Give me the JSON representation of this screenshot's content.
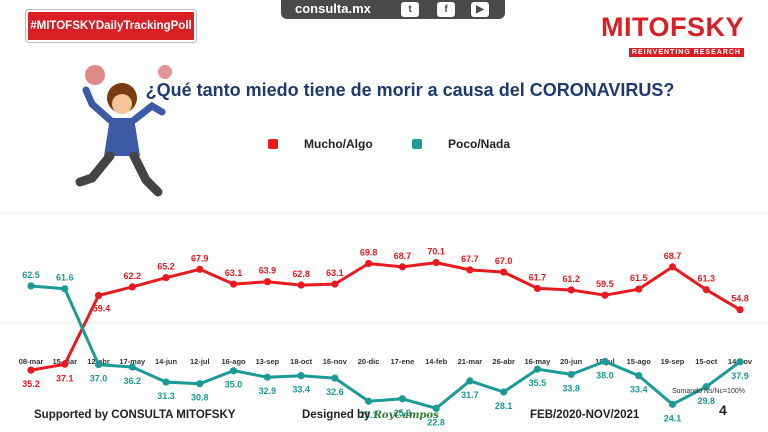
{
  "header": {
    "hashtag": "#MITOFSKYDailyTrackingPoll",
    "site": "consulta.mx",
    "social_icons": [
      "twitter-icon",
      "facebook-icon",
      "youtube-icon"
    ],
    "brand": "MITOFSKY",
    "brand_tagline": "REINVENTING RESEARCH"
  },
  "colors": {
    "red": "#e8191f",
    "teal": "#1b9a96",
    "title": "#1f3a6e",
    "brand": "#d91f26"
  },
  "footer": {
    "supported_by": "Supported by   CONSULTA   MITOFSKY",
    "designed_by": "Designed by",
    "designer": "RoyCampos",
    "period": "FEB/2020-NOV/2021",
    "note": "Sumando Ns/Nc=100%",
    "page": "4"
  },
  "chart_data": {
    "type": "line",
    "title": "¿Qué tanto miedo tiene de morir a causa del CORONAVIRUS?",
    "categories": [
      "08-mar",
      "15-mar",
      "12-abr",
      "17-may",
      "14-jun",
      "12-jul",
      "16-ago",
      "13-sep",
      "18-oct",
      "16-nov",
      "20-dic",
      "17-ene",
      "14-feb",
      "21-mar",
      "26-abr",
      "16-may",
      "20-jun",
      "18-jul",
      "15-ago",
      "19-sep",
      "15-oct",
      "14-nov"
    ],
    "series": [
      {
        "name": "Mucho/Algo",
        "color": "#e8191f",
        "values": [
          35.2,
          37.1,
          59.4,
          62.2,
          65.2,
          67.9,
          63.1,
          63.9,
          62.8,
          63.1,
          69.8,
          68.7,
          70.1,
          67.7,
          67.0,
          61.7,
          61.2,
          59.5,
          61.5,
          68.7,
          61.3,
          54.8
        ]
      },
      {
        "name": "Poco/Nada",
        "color": "#1b9a96",
        "values": [
          62.5,
          61.6,
          37.0,
          36.2,
          31.3,
          30.8,
          35.0,
          32.9,
          33.4,
          32.6,
          25.1,
          25.9,
          22.8,
          31.7,
          28.1,
          35.5,
          33.8,
          38.0,
          33.4,
          24.1,
          29.8,
          37.9
        ]
      }
    ],
    "legend": "top"
  }
}
